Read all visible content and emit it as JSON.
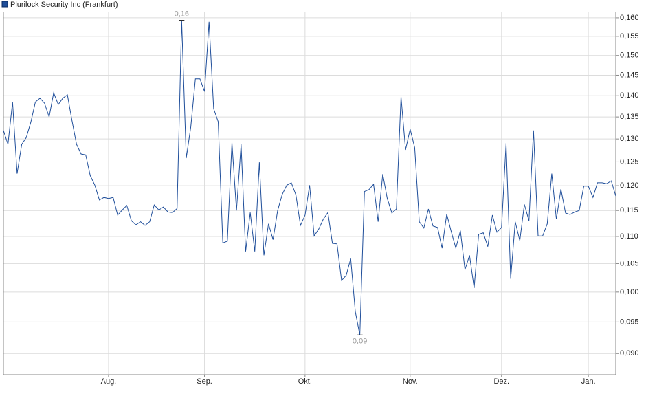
{
  "chart_data": {
    "type": "line",
    "log_scale": true,
    "grid": true,
    "legend_position": "top-left",
    "series": [
      {
        "name": "Plurilock Security Inc (Frankfurt)",
        "color": "#1f4e9a",
        "values": [
          0.1319,
          0.1288,
          0.1385,
          0.1225,
          0.1288,
          0.1303,
          0.1338,
          0.1385,
          0.1394,
          0.1382,
          0.135,
          0.1407,
          0.1379,
          0.1394,
          0.1402,
          0.1342,
          0.1288,
          0.1267,
          0.1265,
          0.1221,
          0.1201,
          0.1171,
          0.1176,
          0.1174,
          0.1176,
          0.1141,
          0.1151,
          0.116,
          0.113,
          0.1122,
          0.1128,
          0.1121,
          0.1128,
          0.1161,
          0.1151,
          0.1157,
          0.1147,
          0.1146,
          0.1154,
          0.1593,
          0.1258,
          0.1327,
          0.1441,
          0.1441,
          0.141,
          0.1589,
          0.1369,
          0.1339,
          0.1088,
          0.1091,
          0.1292,
          0.115,
          0.1288,
          0.1072,
          0.1146,
          0.1072,
          0.1249,
          0.1065,
          0.1124,
          0.1094,
          0.115,
          0.1182,
          0.1201,
          0.1206,
          0.1181,
          0.1121,
          0.1141,
          0.1201,
          0.1101,
          0.1114,
          0.1133,
          0.1146,
          0.1087,
          0.1086,
          0.102,
          0.1029,
          0.1059,
          0.0967,
          0.0929,
          0.1188,
          0.1192,
          0.1203,
          0.1128,
          0.1224,
          0.1174,
          0.1145,
          0.1153,
          0.1398,
          0.1276,
          0.1322,
          0.1281,
          0.1128,
          0.1116,
          0.1153,
          0.112,
          0.1117,
          0.1078,
          0.1143,
          0.1109,
          0.1078,
          0.1111,
          0.1039,
          0.1065,
          0.1007,
          0.1104,
          0.1107,
          0.1081,
          0.1141,
          0.1108,
          0.1117,
          0.1291,
          0.1023,
          0.1128,
          0.1092,
          0.1162,
          0.113,
          0.1319,
          0.1101,
          0.1101,
          0.1124,
          0.1225,
          0.1133,
          0.1193,
          0.1145,
          0.1142,
          0.1147,
          0.115,
          0.1199,
          0.1199,
          0.1176,
          0.1206,
          0.1206,
          0.1204,
          0.121,
          0.1179
        ]
      }
    ],
    "xlim": [
      0,
      134
    ],
    "xticks": [
      {
        "value": 23,
        "label": "Aug."
      },
      {
        "value": 44,
        "label": "Sep."
      },
      {
        "value": 66,
        "label": "Okt."
      },
      {
        "value": 89,
        "label": "Nov."
      },
      {
        "value": 109,
        "label": "Dez."
      },
      {
        "value": 128,
        "label": "Jan."
      }
    ],
    "ylim": [
      0.0868,
      0.1615
    ],
    "yticks": [
      {
        "value": 0.09,
        "label": "0,090"
      },
      {
        "value": 0.095,
        "label": "0,095"
      },
      {
        "value": 0.1,
        "label": "0,100"
      },
      {
        "value": 0.105,
        "label": "0,105"
      },
      {
        "value": 0.11,
        "label": "0,110"
      },
      {
        "value": 0.115,
        "label": "0,115"
      },
      {
        "value": 0.12,
        "label": "0,120"
      },
      {
        "value": 0.125,
        "label": "0,125"
      },
      {
        "value": 0.13,
        "label": "0,130"
      },
      {
        "value": 0.135,
        "label": "0,135"
      },
      {
        "value": 0.14,
        "label": "0,140"
      },
      {
        "value": 0.145,
        "label": "0,145"
      },
      {
        "value": 0.15,
        "label": "0,150"
      },
      {
        "value": 0.155,
        "label": "0,155"
      },
      {
        "value": 0.16,
        "label": "0,160"
      }
    ],
    "max_label": {
      "value": 0.1593,
      "label": "0,16"
    },
    "min_label": {
      "value": 0.0929,
      "label": "0,09"
    }
  }
}
